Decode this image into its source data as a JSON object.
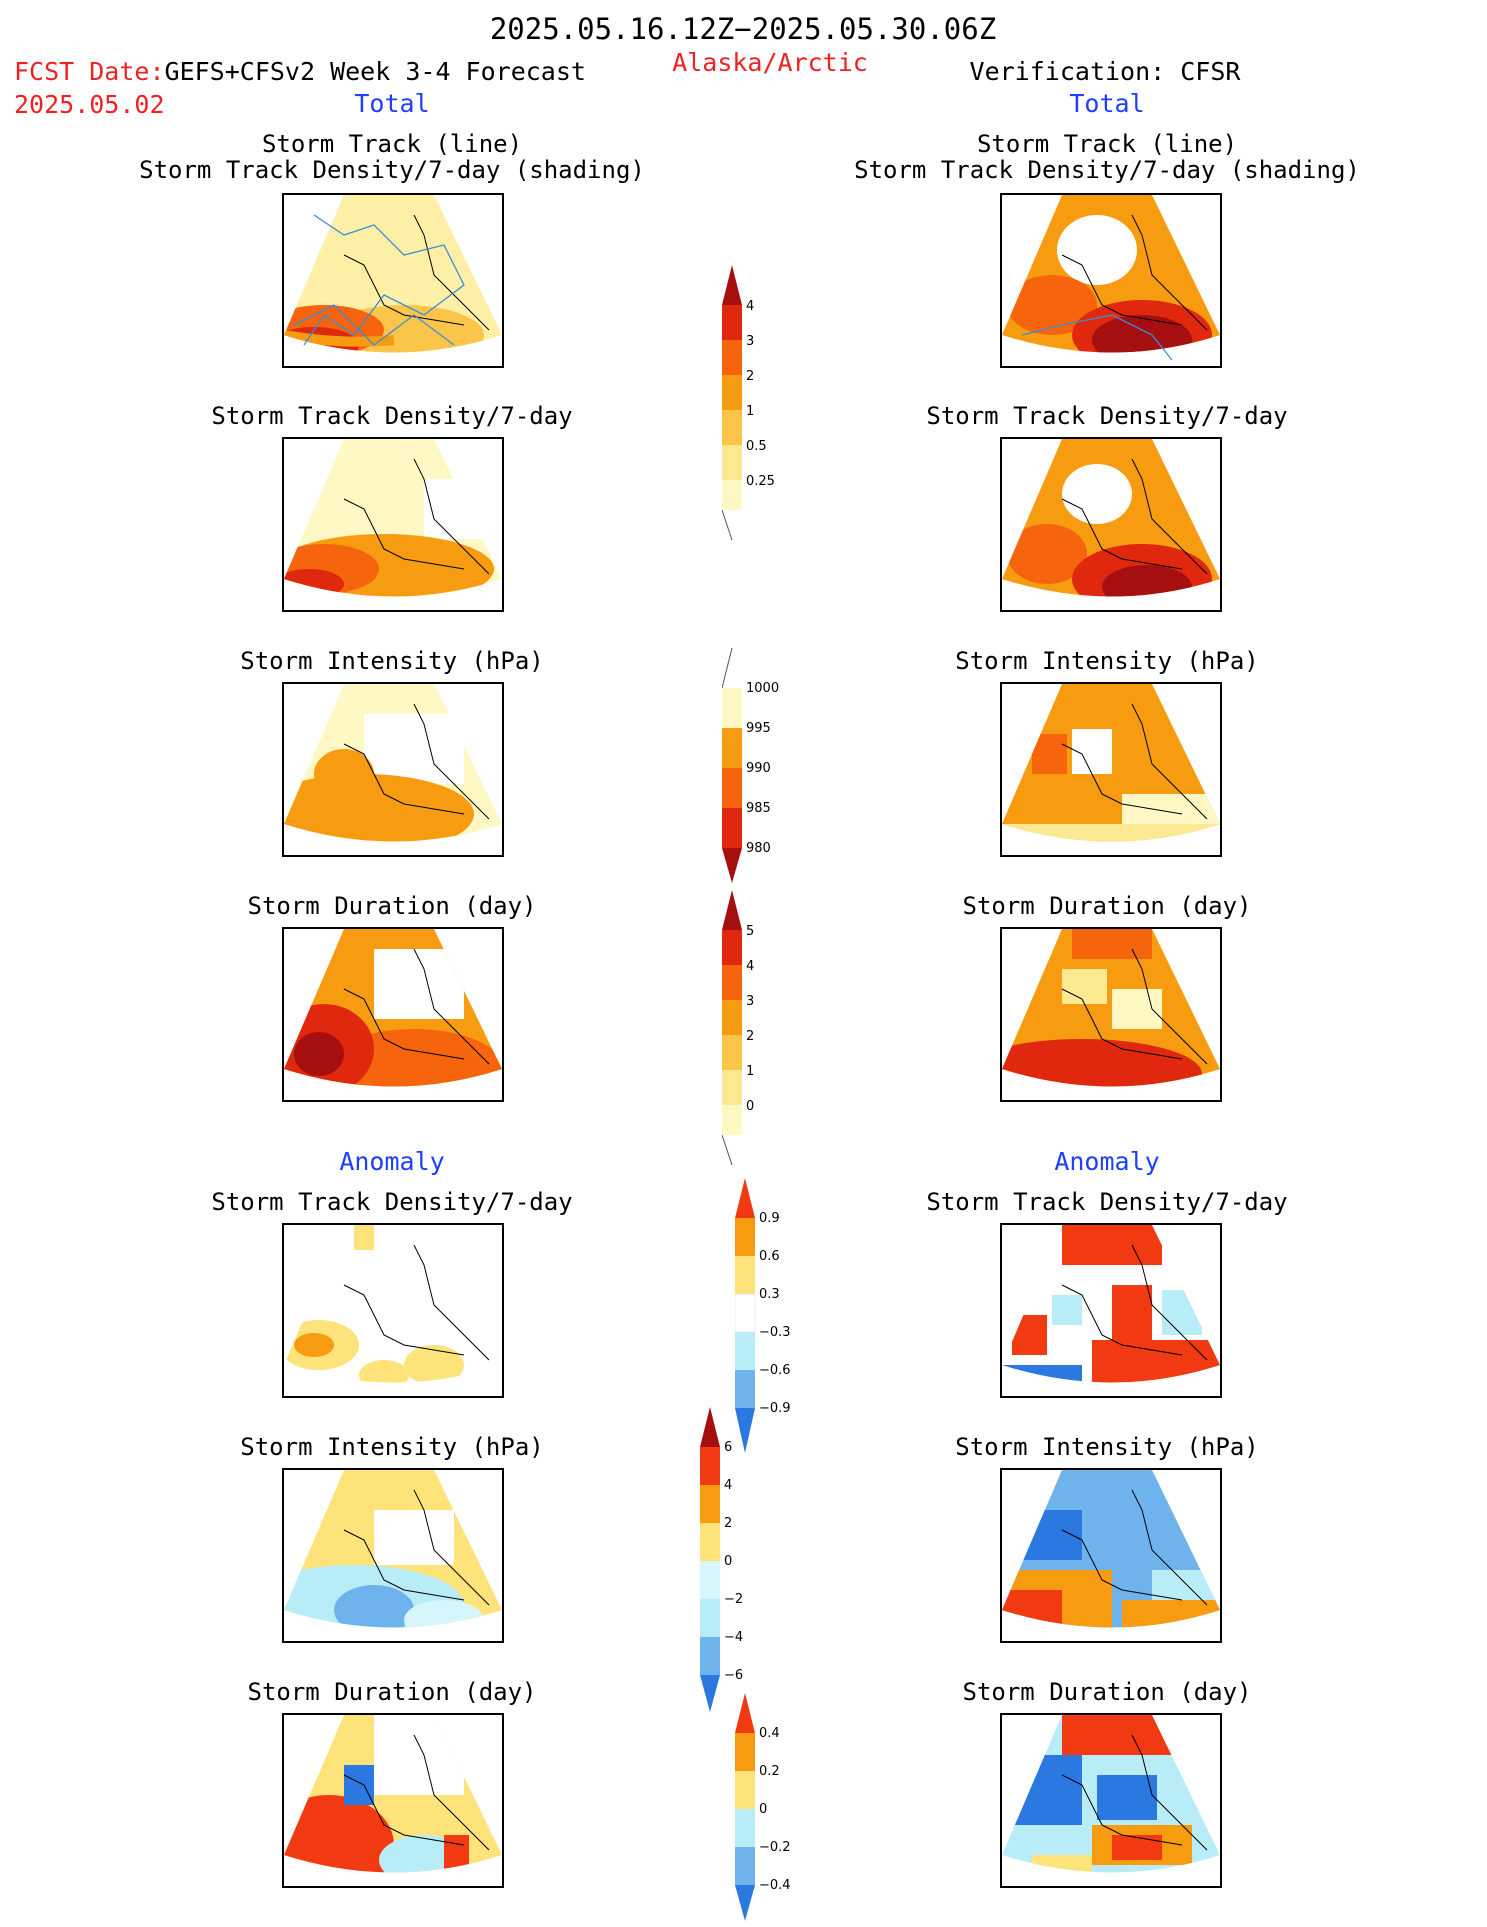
{
  "header": {
    "period": "2025.05.16.12Z−2025.05.30.06Z",
    "fcst_label": "FCST Date:",
    "fcst_model": "GEFS+CFSv2 Week 3-4 Forecast",
    "fcst_date": "2025.05.02",
    "region": "Alaska/Arctic",
    "verification": "Verification: CFSR"
  },
  "columns": {
    "left_total": "Total",
    "right_total": "Total",
    "left_anomaly": "Anomaly",
    "right_anomaly": "Anomaly"
  },
  "panels": {
    "track_title_1": "Storm Track (line)",
    "track_title_2": "Storm Track Density/7-day (shading)",
    "density": "Storm Track Density/7-day",
    "intensity": "Storm Intensity (hPa)",
    "duration": "Storm Duration (day)"
  },
  "colorbars": {
    "density": {
      "labels": [
        "4",
        "3",
        "2",
        "1",
        "0.5",
        "0.25"
      ],
      "colors": [
        "#a50f0f",
        "#e0280e",
        "#f6640d",
        "#f79b10",
        "#fbc54a",
        "#fde992",
        "#fff8c4"
      ]
    },
    "intensity": {
      "labels": [
        "1000",
        "995",
        "990",
        "985",
        "980"
      ],
      "colors": [
        "#fff8c4",
        "#f79b10",
        "#f6640d",
        "#e0280e",
        "#a50f0f"
      ]
    },
    "duration": {
      "labels": [
        "5",
        "4",
        "3",
        "2",
        "1",
        "0"
      ],
      "colors": [
        "#a50f0f",
        "#e0280e",
        "#f6640d",
        "#f79b10",
        "#fbc54a",
        "#fde992",
        "#fff8c4"
      ]
    },
    "density_anom": {
      "labels": [
        "0.9",
        "0.6",
        "0.3",
        "−0.3",
        "−0.6",
        "−0.9"
      ],
      "colors": [
        "#f23a12",
        "#f79b10",
        "#fde37a",
        "#ffffff",
        "#b8ecf6",
        "#6fb3ec",
        "#2b78e0"
      ]
    },
    "intensity_anom": {
      "labels": [
        "6",
        "4",
        "2",
        "0",
        "−2",
        "−4",
        "−6"
      ],
      "colors": [
        "#a50f0f",
        "#f23a12",
        "#f79b10",
        "#fde37a",
        "#d6f6fc",
        "#b8ecf6",
        "#6fb3ec",
        "#2b78e0"
      ]
    },
    "duration_anom": {
      "labels": [
        "0.4",
        "0.2",
        "0",
        "−0.2",
        "−0.4"
      ],
      "colors": [
        "#f23a12",
        "#f79b10",
        "#fde37a",
        "#b8ecf6",
        "#6fb3ec",
        "#2b78e0"
      ]
    }
  }
}
